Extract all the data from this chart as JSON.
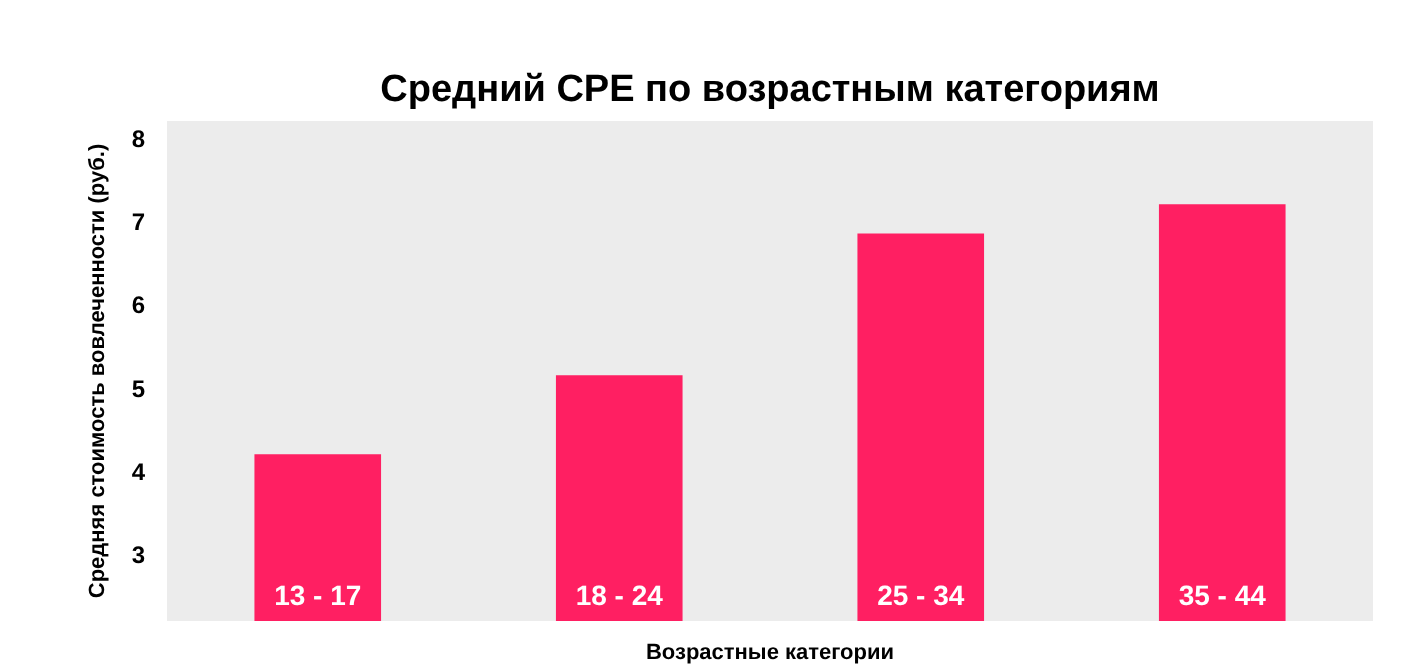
{
  "chart_data": {
    "type": "bar",
    "title": "Средний CPE по возрастным категориям",
    "xlabel": "Возрастные категории",
    "ylabel": "Средняя стоимость вовлеченности (руб.)",
    "categories": [
      "13 - 17",
      "18 - 24",
      "25 - 34",
      "35 - 44"
    ],
    "values": [
      4.2,
      5.15,
      6.85,
      7.2
    ],
    "color": "#ff1f62",
    "ylim": [
      2.2,
      8.2
    ],
    "yticks": [
      3,
      4,
      5,
      6,
      7,
      8
    ],
    "grid": false
  }
}
